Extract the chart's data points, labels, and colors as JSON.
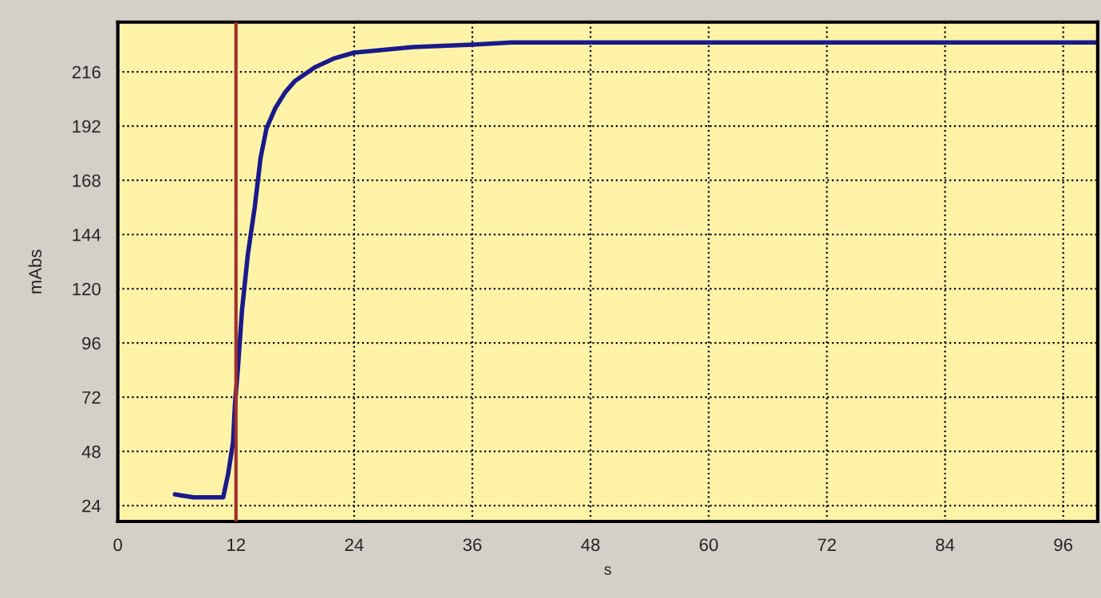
{
  "chart_data": {
    "type": "line",
    "xlabel": "s",
    "ylabel": "mAbs",
    "x": [
      5.8,
      6.5,
      7.7,
      10.7,
      11.2,
      11.7,
      11.9,
      12.2,
      12.6,
      13.2,
      13.9,
      14.5,
      15.1,
      16,
      17,
      18,
      20,
      22,
      24,
      30,
      36,
      40,
      60,
      80,
      99.5
    ],
    "series": [
      {
        "color": "#1a1a8c",
        "values": [
          29,
          28.5,
          27.7,
          27.7,
          38,
          52,
          69,
          85,
          110,
          135,
          156,
          178,
          191,
          200,
          207,
          212,
          218,
          222,
          224.5,
          227,
          228,
          229,
          229,
          229,
          229
        ]
      }
    ],
    "xlim": [
      0,
      99.5
    ],
    "xticks": [
      0,
      12,
      24,
      36,
      48,
      60,
      72,
      84,
      96
    ],
    "ylim": [
      17,
      238
    ],
    "yticks": [
      24,
      48,
      72,
      96,
      120,
      144,
      168,
      192,
      216
    ],
    "grid": true,
    "marker": "none",
    "line_style": "solid",
    "ref_lines": [
      {
        "axis": "x",
        "value": 12,
        "color": "#a0302a",
        "line_style": "solid"
      }
    ]
  }
}
